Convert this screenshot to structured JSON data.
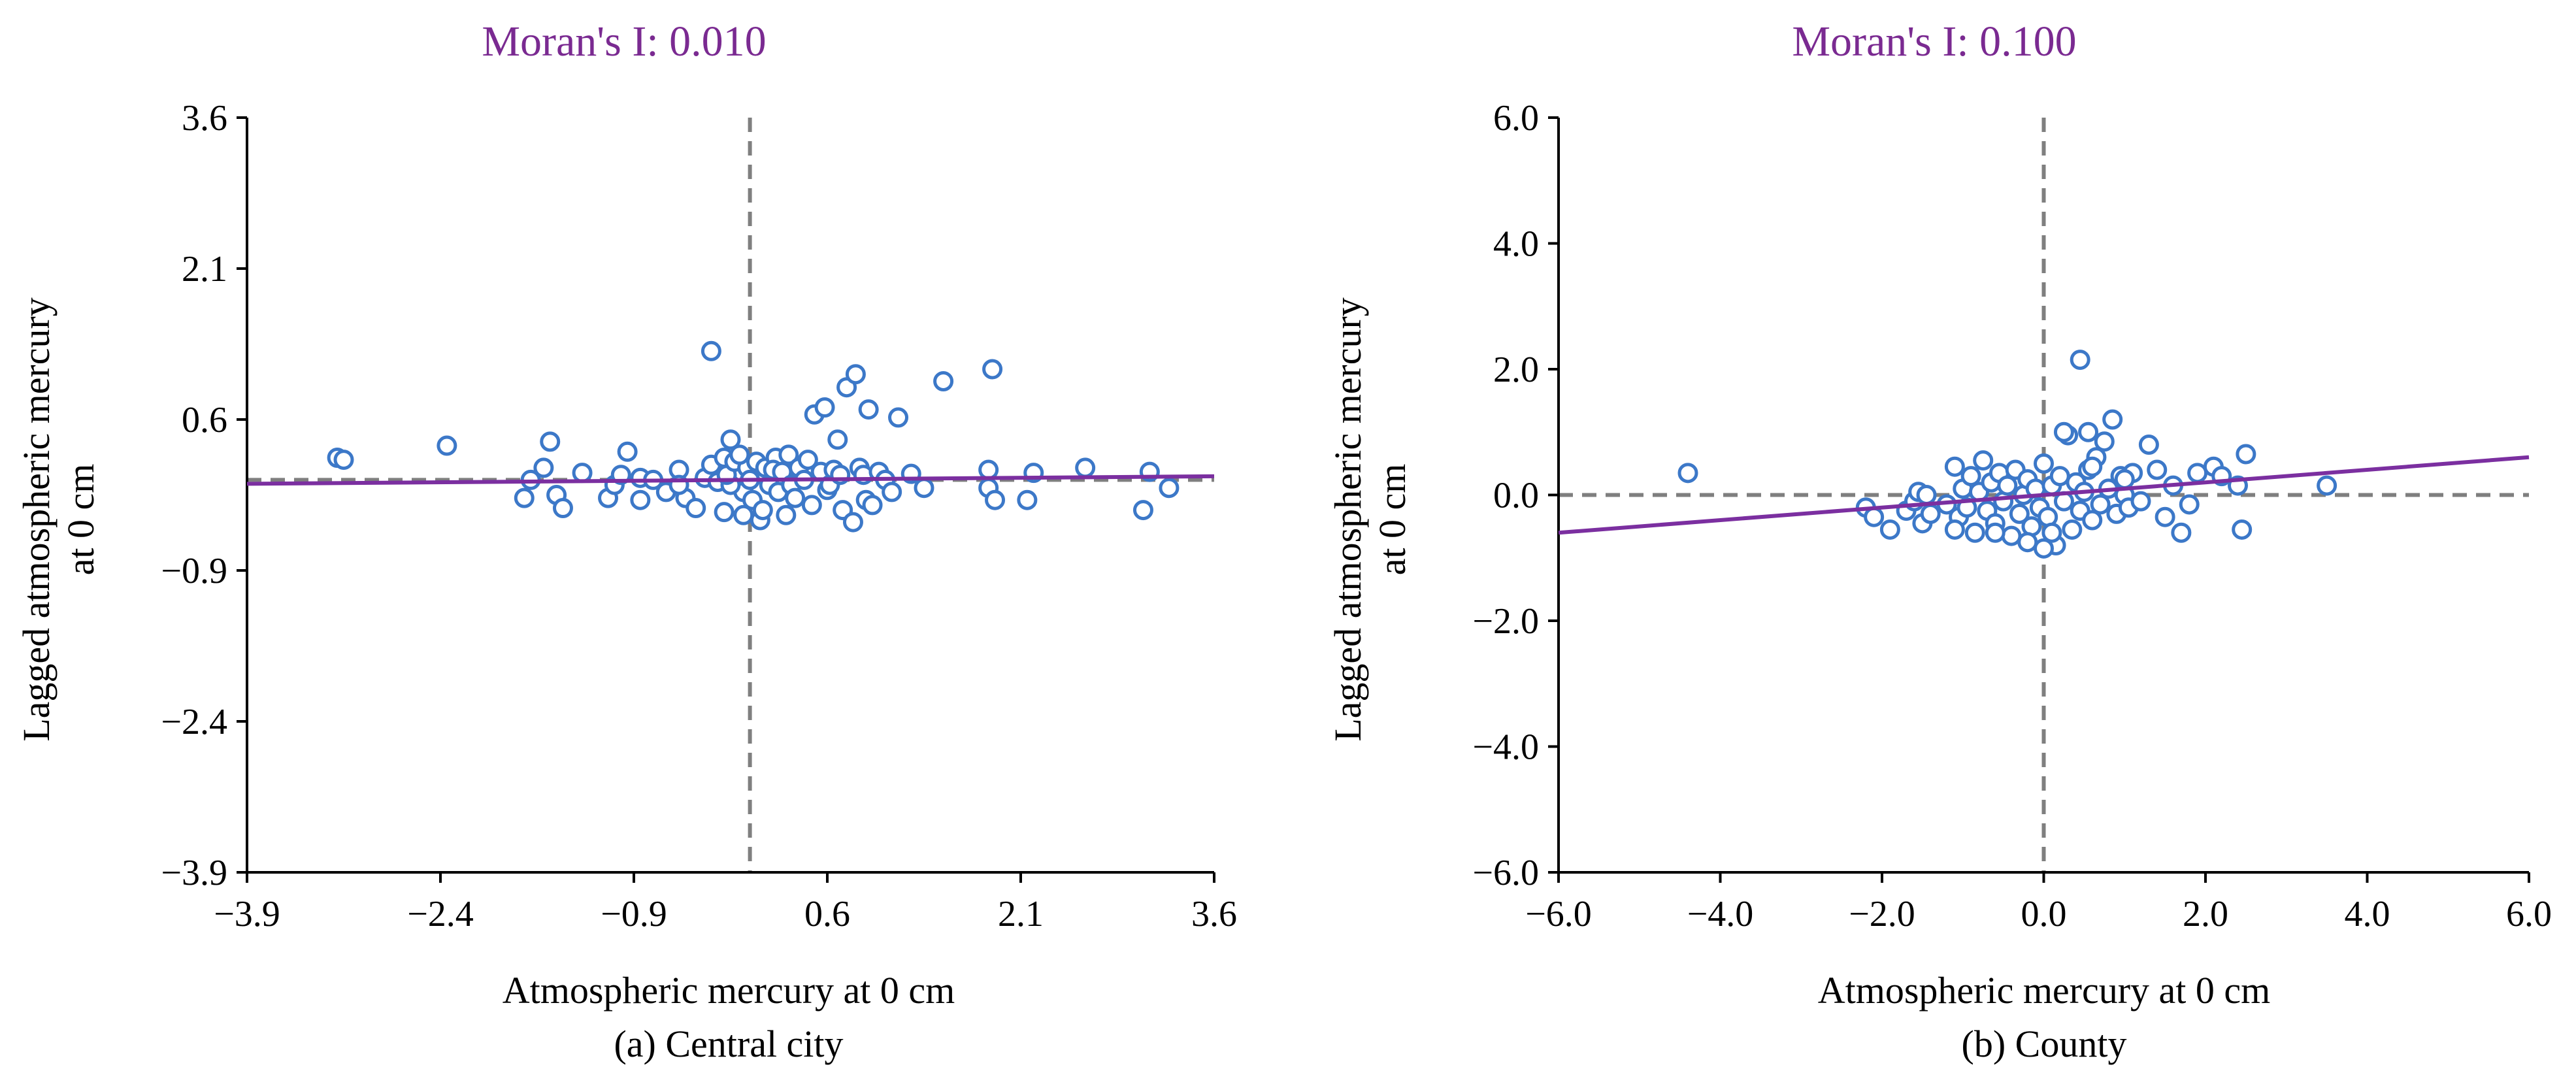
{
  "colors": {
    "title": "#7a2a91",
    "fit_line": "#7b2fa0",
    "point_stroke": "#3c78c8",
    "axis": "#000000",
    "reference_line": "#7f7f7f"
  },
  "chart_data": [
    {
      "type": "scatter",
      "title": "Moran's I: 0.010",
      "xlabel": "Atmospheric mercury at 0 cm",
      "ylabel_lines": [
        "Lagged atmospheric mercury",
        "at 0 cm"
      ],
      "caption": "(a) Central city",
      "xlim": [
        -3.9,
        3.6
      ],
      "ylim": [
        -3.9,
        3.6
      ],
      "xticks": [
        -3.9,
        -2.4,
        -0.9,
        0.6,
        2.1,
        3.6
      ],
      "yticks": [
        -3.9,
        -2.4,
        -0.9,
        0.6,
        2.1,
        3.6
      ],
      "xtick_labels": [
        "−3.9",
        "−2.4",
        "−0.9",
        "0.6",
        "2.1",
        "3.6"
      ],
      "ytick_labels": [
        "−3.9",
        "−2.4",
        "−0.9",
        "0.6",
        "2.1",
        "3.6"
      ],
      "reference_x": 0.0,
      "reference_y": 0.0,
      "fit_slope": 0.01,
      "fit_intercept": 0.0,
      "points": [
        [
          -3.2,
          0.22
        ],
        [
          -3.15,
          0.2
        ],
        [
          -2.35,
          0.34
        ],
        [
          -1.75,
          -0.18
        ],
        [
          -1.7,
          0.0
        ],
        [
          -1.6,
          0.12
        ],
        [
          -1.5,
          -0.15
        ],
        [
          -1.45,
          -0.28
        ],
        [
          -1.55,
          0.38
        ],
        [
          -1.3,
          0.07
        ],
        [
          -1.1,
          -0.18
        ],
        [
          -1.05,
          -0.05
        ],
        [
          -1.0,
          0.05
        ],
        [
          -0.85,
          -0.2
        ],
        [
          -0.95,
          0.28
        ],
        [
          -0.85,
          0.02
        ],
        [
          -0.75,
          0.0
        ],
        [
          -0.65,
          -0.12
        ],
        [
          -0.55,
          0.1
        ],
        [
          -0.5,
          -0.18
        ],
        [
          -0.42,
          -0.28
        ],
        [
          -0.35,
          0.02
        ],
        [
          -0.55,
          -0.05
        ],
        [
          -0.3,
          0.15
        ],
        [
          -0.25,
          -0.02
        ],
        [
          -0.2,
          0.22
        ],
        [
          -0.15,
          0.4
        ],
        [
          -0.2,
          -0.32
        ],
        [
          -0.1,
          0.08
        ],
        [
          -0.05,
          -0.12
        ],
        [
          -0.15,
          -0.05
        ],
        [
          -0.3,
          1.28
        ],
        [
          -0.18,
          0.05
        ],
        [
          -0.12,
          0.18
        ],
        [
          -0.02,
          0.12
        ],
        [
          -0.05,
          -0.35
        ],
        [
          -0.08,
          0.25
        ],
        [
          0.0,
          0.0
        ],
        [
          0.05,
          0.18
        ],
        [
          0.02,
          -0.2
        ],
        [
          0.08,
          -0.4
        ],
        [
          0.12,
          0.12
        ],
        [
          0.15,
          -0.05
        ],
        [
          0.1,
          -0.3
        ],
        [
          0.2,
          0.22
        ],
        [
          0.18,
          0.1
        ],
        [
          0.22,
          -0.12
        ],
        [
          0.25,
          0.08
        ],
        [
          0.3,
          0.25
        ],
        [
          0.28,
          -0.35
        ],
        [
          0.32,
          -0.05
        ],
        [
          0.35,
          -0.18
        ],
        [
          0.38,
          0.12
        ],
        [
          0.42,
          0.0
        ],
        [
          0.45,
          0.2
        ],
        [
          0.48,
          -0.25
        ],
        [
          0.5,
          0.65
        ],
        [
          0.55,
          0.08
        ],
        [
          0.58,
          0.72
        ],
        [
          0.6,
          -0.1
        ],
        [
          0.62,
          -0.05
        ],
        [
          0.65,
          0.1
        ],
        [
          0.68,
          0.4
        ],
        [
          0.7,
          0.05
        ],
        [
          0.72,
          -0.3
        ],
        [
          0.75,
          0.92
        ],
        [
          0.8,
          -0.42
        ],
        [
          0.82,
          1.05
        ],
        [
          0.85,
          0.12
        ],
        [
          0.9,
          -0.2
        ],
        [
          0.88,
          0.05
        ],
        [
          0.92,
          0.7
        ],
        [
          0.95,
          -0.25
        ],
        [
          1.0,
          0.08
        ],
        [
          1.05,
          0.0
        ],
        [
          1.1,
          -0.12
        ],
        [
          1.15,
          0.62
        ],
        [
          1.25,
          0.06
        ],
        [
          1.35,
          -0.08
        ],
        [
          1.5,
          0.98
        ],
        [
          1.85,
          0.1
        ],
        [
          1.85,
          -0.08
        ],
        [
          1.88,
          1.1
        ],
        [
          1.9,
          -0.2
        ],
        [
          2.15,
          -0.2
        ],
        [
          2.2,
          0.07
        ],
        [
          2.6,
          0.12
        ],
        [
          3.05,
          -0.3
        ],
        [
          3.1,
          0.08
        ],
        [
          3.25,
          -0.08
        ]
      ]
    },
    {
      "type": "scatter",
      "title": "Moran's I: 0.100",
      "xlabel": "Atmospheric mercury at 0 cm",
      "ylabel_lines": [
        "Lagged atmospheric mercury",
        "at 0 cm"
      ],
      "caption": "(b) County",
      "xlim": [
        -6.0,
        6.0
      ],
      "ylim": [
        -6.0,
        6.0
      ],
      "xticks": [
        -6.0,
        -4.0,
        -2.0,
        0.0,
        2.0,
        4.0,
        6.0
      ],
      "yticks": [
        -6.0,
        -4.0,
        -2.0,
        0.0,
        2.0,
        4.0,
        6.0
      ],
      "xtick_labels": [
        "−6.0",
        "−4.0",
        "−2.0",
        "0.0",
        "2.0",
        "4.0",
        "6.0"
      ],
      "ytick_labels": [
        "−6.0",
        "−4.0",
        "−2.0",
        "0.0",
        "2.0",
        "4.0",
        "6.0"
      ],
      "reference_x": 0.0,
      "reference_y": 0.0,
      "fit_slope": 0.1,
      "fit_intercept": 0.0,
      "points": [
        [
          -4.4,
          0.35
        ],
        [
          -2.2,
          -0.2
        ],
        [
          -2.1,
          -0.35
        ],
        [
          -1.9,
          -0.55
        ],
        [
          -1.7,
          -0.25
        ],
        [
          -1.6,
          -0.1
        ],
        [
          -1.55,
          0.05
        ],
        [
          -1.5,
          -0.45
        ],
        [
          -1.45,
          0.0
        ],
        [
          -1.4,
          -0.3
        ],
        [
          -1.2,
          -0.15
        ],
        [
          -1.1,
          0.45
        ],
        [
          -1.05,
          -0.35
        ],
        [
          -1.0,
          0.1
        ],
        [
          -0.95,
          -0.2
        ],
        [
          -0.9,
          0.3
        ],
        [
          -0.85,
          -0.6
        ],
        [
          -0.8,
          0.05
        ],
        [
          -0.75,
          0.55
        ],
        [
          -0.7,
          -0.25
        ],
        [
          -0.65,
          0.2
        ],
        [
          -0.6,
          -0.45
        ],
        [
          -0.55,
          0.35
        ],
        [
          -0.5,
          -0.1
        ],
        [
          -0.45,
          0.15
        ],
        [
          -0.4,
          -0.65
        ],
        [
          -0.35,
          0.4
        ],
        [
          -0.3,
          -0.3
        ],
        [
          -0.25,
          0.0
        ],
        [
          -0.2,
          0.25
        ],
        [
          -0.15,
          -0.5
        ],
        [
          -0.1,
          0.1
        ],
        [
          -0.05,
          -0.2
        ],
        [
          0.0,
          0.5
        ],
        [
          0.05,
          -0.35
        ],
        [
          0.1,
          0.15
        ],
        [
          0.15,
          -0.8
        ],
        [
          0.2,
          0.3
        ],
        [
          0.25,
          -0.1
        ],
        [
          0.3,
          0.95
        ],
        [
          0.35,
          -0.55
        ],
        [
          0.4,
          0.2
        ],
        [
          0.45,
          -0.25
        ],
        [
          0.5,
          0.05
        ],
        [
          0.55,
          0.4
        ],
        [
          0.6,
          -0.4
        ],
        [
          0.65,
          0.6
        ],
        [
          0.7,
          -0.15
        ],
        [
          0.75,
          0.85
        ],
        [
          0.8,
          0.1
        ],
        [
          0.85,
          1.2
        ],
        [
          0.9,
          -0.3
        ],
        [
          0.95,
          0.3
        ],
        [
          1.0,
          0.0
        ],
        [
          1.05,
          -0.2
        ],
        [
          1.1,
          0.35
        ],
        [
          1.2,
          -0.1
        ],
        [
          1.3,
          0.8
        ],
        [
          1.4,
          0.4
        ],
        [
          1.5,
          -0.35
        ],
        [
          1.6,
          0.15
        ],
        [
          1.7,
          -0.6
        ],
        [
          1.8,
          -0.15
        ],
        [
          1.9,
          0.35
        ],
        [
          2.1,
          0.45
        ],
        [
          2.2,
          0.3
        ],
        [
          2.4,
          0.15
        ],
        [
          2.45,
          -0.55
        ],
        [
          2.5,
          0.65
        ],
        [
          3.5,
          0.15
        ],
        [
          0.45,
          2.15
        ],
        [
          0.25,
          1.0
        ],
        [
          0.55,
          1.0
        ],
        [
          -0.2,
          -0.75
        ],
        [
          0.0,
          -0.85
        ],
        [
          0.1,
          -0.6
        ],
        [
          -0.6,
          -0.6
        ],
        [
          -1.1,
          -0.55
        ],
        [
          1.0,
          0.25
        ],
        [
          0.6,
          0.45
        ]
      ]
    }
  ]
}
